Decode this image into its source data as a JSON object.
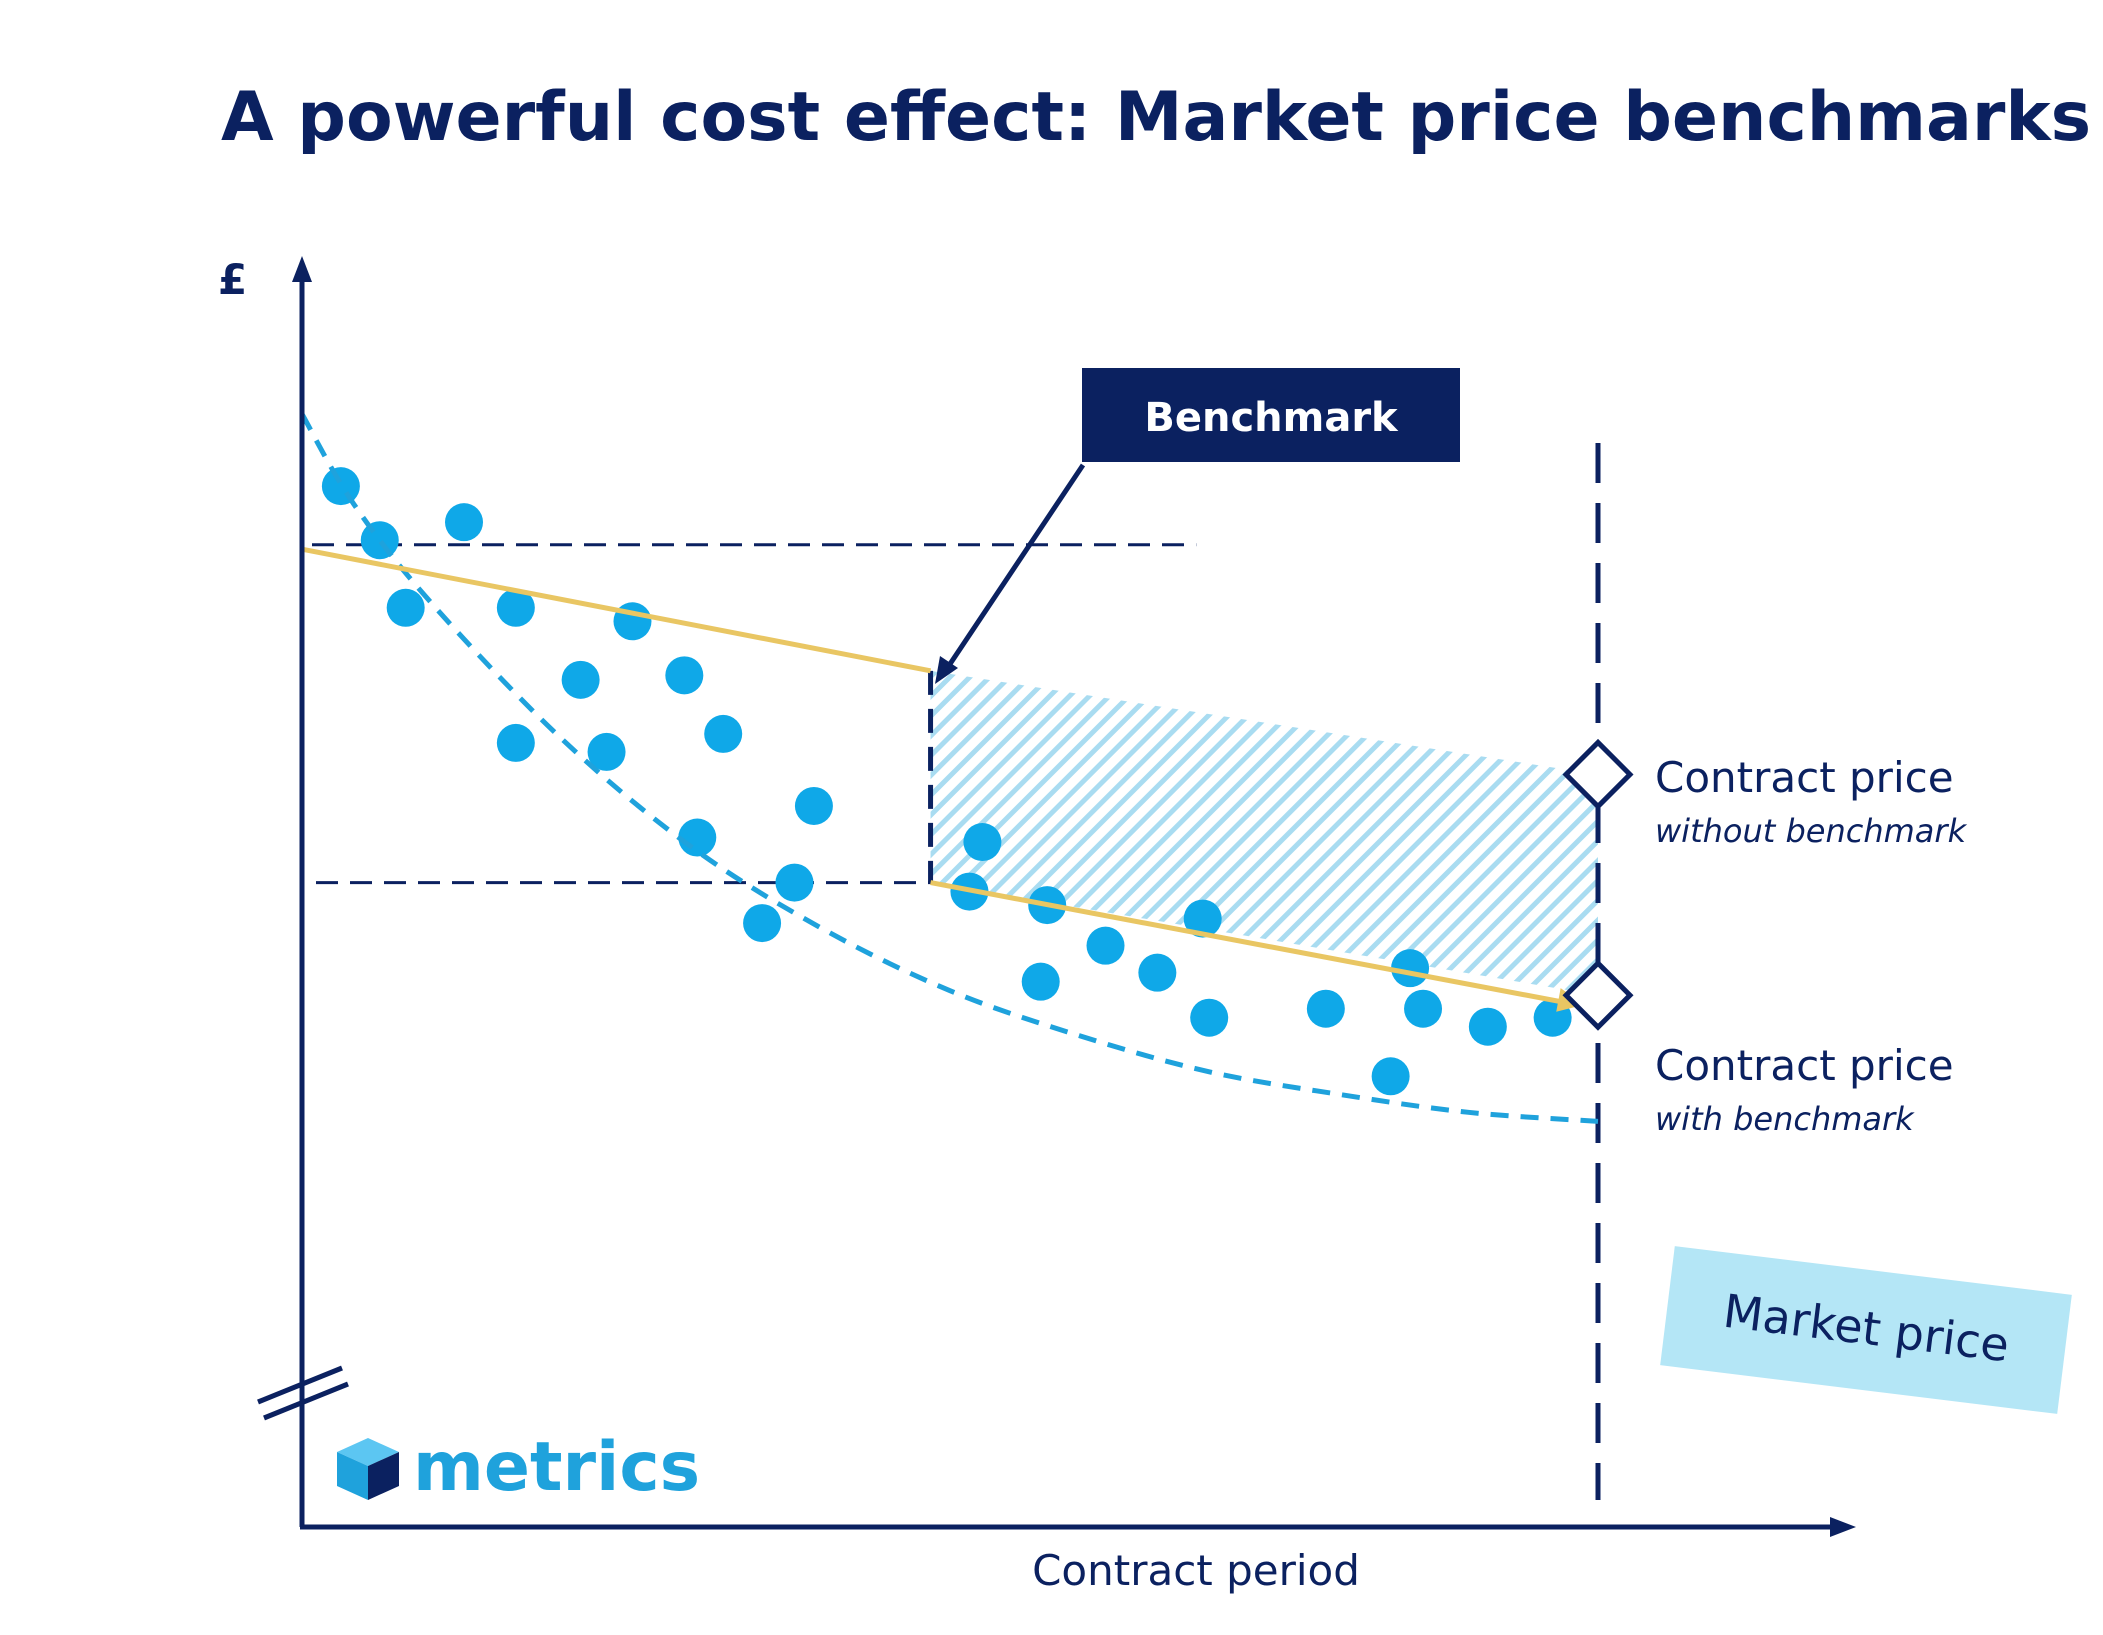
{
  "chart_data": {
    "type": "scatter",
    "title": "A powerful cost effect: Market price benchmarks",
    "ylabel": "£",
    "xlabel": "Contract period",
    "xlim": [
      0,
      100
    ],
    "ylim": [
      0,
      100
    ],
    "market_price_curve": [
      [
        0,
        95
      ],
      [
        4,
        85
      ],
      [
        10,
        74
      ],
      [
        20,
        59
      ],
      [
        30,
        47
      ],
      [
        40,
        38
      ],
      [
        50,
        31
      ],
      [
        60,
        26
      ],
      [
        70,
        22
      ],
      [
        80,
        19.5
      ],
      [
        90,
        17.5
      ],
      [
        100,
        16.5
      ]
    ],
    "contract_without_benchmark": [
      [
        0,
        80
      ],
      [
        48.5,
        66.5
      ]
    ],
    "contract_with_benchmark": [
      [
        48.5,
        43
      ],
      [
        100,
        29
      ]
    ],
    "benchmark_x": 48.5,
    "contract_end_x": 100,
    "reference_price_high": 80.5,
    "reference_price_low": 43,
    "contract_price_without_benchmark": 55,
    "contract_price_with_benchmark": 30.5,
    "points": [
      [
        3,
        87
      ],
      [
        6,
        81
      ],
      [
        12.5,
        83
      ],
      [
        8,
        73.5
      ],
      [
        16.5,
        73.5
      ],
      [
        21.5,
        65.5
      ],
      [
        25.5,
        72
      ],
      [
        29.5,
        66
      ],
      [
        16.5,
        58.5
      ],
      [
        23.5,
        57.5
      ],
      [
        32.5,
        59.5
      ],
      [
        30.5,
        48
      ],
      [
        39.5,
        51.5
      ],
      [
        38,
        43
      ],
      [
        35.5,
        38.5
      ],
      [
        52.5,
        47.5
      ],
      [
        51.5,
        42
      ],
      [
        57.5,
        40.5
      ],
      [
        69.5,
        39
      ],
      [
        62,
        36
      ],
      [
        57,
        32
      ],
      [
        66,
        33
      ],
      [
        70,
        28
      ],
      [
        79,
        29
      ],
      [
        84,
        21.5
      ],
      [
        85.5,
        33.5
      ],
      [
        86.5,
        29
      ],
      [
        91.5,
        27
      ],
      [
        96.5,
        28
      ]
    ],
    "annotations": {
      "benchmark_label": "Benchmark",
      "without_title": "Contract price",
      "without_sub": "without benchmark",
      "with_title": "Contract price",
      "with_sub": "with benchmark",
      "market_label": "Market price"
    },
    "colors": {
      "navy": "#0b2160",
      "dots": "#0fa8e8",
      "market_curve": "#1fa2dc",
      "contract_line": "#e9c663",
      "hatch": "#a9dcf1",
      "market_label_bg": "#b4e6f6"
    }
  },
  "brand": {
    "name": "metrics",
    "logo_icon": "cube-icon"
  }
}
